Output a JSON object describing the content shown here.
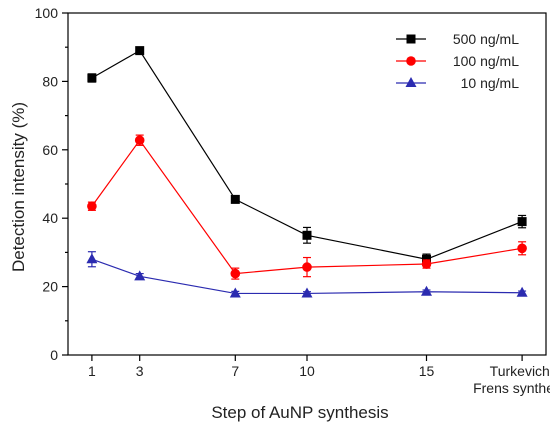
{
  "chart_data": {
    "type": "line",
    "xlabel": "Step of AuNP synthesis",
    "ylabel": "Detection intensity (%)",
    "ylim": [
      0,
      100
    ],
    "yticks": [
      0,
      20,
      40,
      60,
      80,
      100
    ],
    "categories": [
      "1",
      "3",
      "7",
      "10",
      "15",
      "Turkevich-\nFrens synthesis"
    ],
    "x": [
      1,
      3,
      7,
      10,
      15,
      19
    ],
    "xlim": [
      0,
      20
    ],
    "legend_position": "top-right",
    "series": [
      {
        "name": "500 ng/mL",
        "color": "#000000",
        "marker": "square",
        "values": [
          81,
          89,
          45.5,
          35,
          28,
          39
        ],
        "errors": [
          1.2,
          0.8,
          1.0,
          2.3,
          1.5,
          1.8
        ]
      },
      {
        "name": "100 ng/mL",
        "color": "#ff0000",
        "marker": "circle",
        "values": [
          43.5,
          62.8,
          23.8,
          25.7,
          26.6,
          31.2
        ],
        "errors": [
          1.2,
          1.5,
          1.6,
          2.8,
          1.2,
          1.9
        ]
      },
      {
        "name": "10 ng/mL",
        "color": "#2b2bb0",
        "marker": "triangle",
        "values": [
          28,
          23,
          18,
          18,
          18.5,
          18.2
        ],
        "errors": [
          2.2,
          0.8,
          0.6,
          0.5,
          0.5,
          0.5
        ]
      }
    ]
  }
}
